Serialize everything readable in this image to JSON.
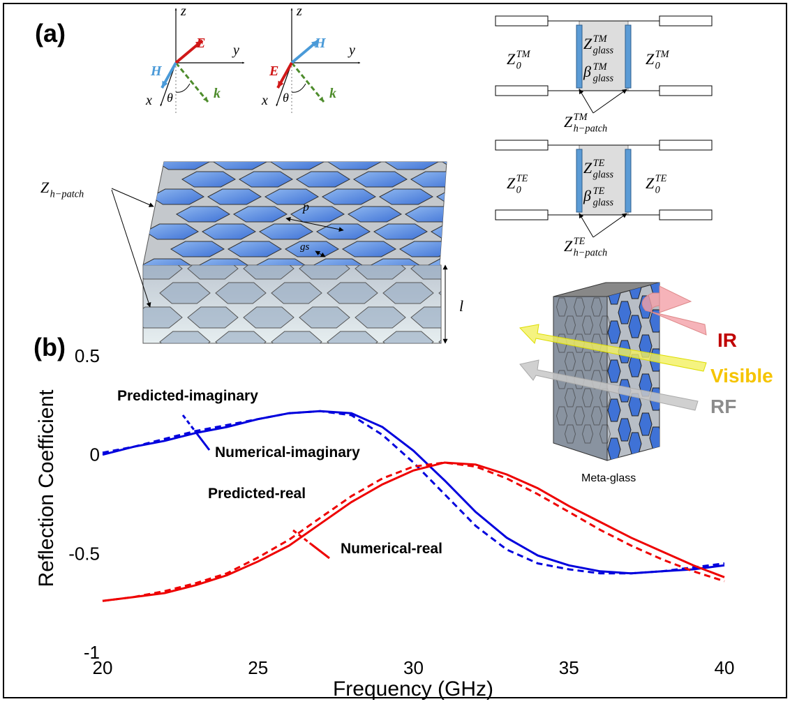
{
  "chart_data": {
    "type": "line",
    "xlabel": "Frequency (GHz)",
    "ylabel": "Reflection Coefficient",
    "x": [
      20,
      21,
      22,
      23,
      24,
      25,
      26,
      27,
      28,
      29,
      30,
      31,
      32,
      33,
      34,
      35,
      36,
      37,
      38,
      39,
      40
    ],
    "series": [
      {
        "name": "Predicted-imaginary",
        "color": "#0000dd",
        "line_style": "solid",
        "values": [
          0.0,
          0.04,
          0.07,
          0.11,
          0.14,
          0.18,
          0.21,
          0.22,
          0.21,
          0.14,
          0.02,
          -0.13,
          -0.29,
          -0.42,
          -0.51,
          -0.56,
          -0.59,
          -0.6,
          -0.59,
          -0.58,
          -0.56
        ]
      },
      {
        "name": "Numerical-imaginary",
        "color": "#0000dd",
        "line_style": "dashed",
        "values": [
          0.01,
          0.04,
          0.08,
          0.12,
          0.15,
          0.18,
          0.21,
          0.22,
          0.2,
          0.1,
          -0.04,
          -0.2,
          -0.36,
          -0.48,
          -0.55,
          -0.58,
          -0.6,
          -0.6,
          -0.59,
          -0.57,
          -0.55
        ]
      },
      {
        "name": "Predicted-real",
        "color": "#ee0000",
        "line_style": "solid",
        "values": [
          -0.74,
          -0.72,
          -0.7,
          -0.66,
          -0.61,
          -0.54,
          -0.46,
          -0.35,
          -0.24,
          -0.15,
          -0.08,
          -0.04,
          -0.05,
          -0.1,
          -0.17,
          -0.26,
          -0.34,
          -0.42,
          -0.49,
          -0.56,
          -0.62
        ]
      },
      {
        "name": "Numerical-real",
        "color": "#ee0000",
        "line_style": "dashed",
        "values": [
          -0.74,
          -0.72,
          -0.69,
          -0.65,
          -0.6,
          -0.52,
          -0.43,
          -0.32,
          -0.21,
          -0.12,
          -0.06,
          -0.04,
          -0.06,
          -0.12,
          -0.2,
          -0.29,
          -0.38,
          -0.46,
          -0.53,
          -0.59,
          -0.64
        ]
      }
    ],
    "xlim": [
      20,
      40
    ],
    "xticks": [
      20,
      25,
      30,
      35,
      40
    ],
    "ylim": [
      -1,
      0.5
    ],
    "yticks": [
      -1,
      -0.5,
      0,
      0.5
    ],
    "grid": false
  },
  "diagram": {
    "label_a": "(a)",
    "label_b": "(b)",
    "axes": [
      {
        "z": "z",
        "y": "y",
        "x": "x",
        "E": "E",
        "H": "H",
        "k": "k",
        "theta": "θ"
      },
      {
        "z": "z",
        "y": "y",
        "x": "x",
        "E": "E",
        "H": "H",
        "k": "k",
        "theta": "θ"
      }
    ],
    "circuit_tm": {
      "z0_left": {
        "base": "Z",
        "sub": "0",
        "sup": "TM"
      },
      "z_glass": {
        "base": "Z",
        "sub": "glass",
        "sup": "TM"
      },
      "beta_glass": {
        "base": "β",
        "sub": "glass",
        "sup": "TM"
      },
      "z0_right": {
        "base": "Z",
        "sub": "0",
        "sup": "TM"
      },
      "z_patch": {
        "base": "Z",
        "sub": "h−patch",
        "sup": "TM"
      }
    },
    "circuit_te": {
      "z0_left": {
        "base": "Z",
        "sub": "0",
        "sup": "TE"
      },
      "z_glass": {
        "base": "Z",
        "sub": "glass",
        "sup": "TE"
      },
      "beta_glass": {
        "base": "β",
        "sub": "glass",
        "sup": "TE"
      },
      "z0_right": {
        "base": "Z",
        "sub": "0",
        "sup": "TE"
      },
      "z_patch": {
        "base": "Z",
        "sub": "h−patch",
        "sup": "TE"
      }
    },
    "z_h_patch": {
      "base": "Z",
      "sub": "h−patch"
    },
    "p": "p",
    "gs": "gs",
    "l": "l",
    "ir": "IR",
    "visible": "Visible",
    "rf": "RF",
    "meta_glass": "Meta-glass"
  }
}
